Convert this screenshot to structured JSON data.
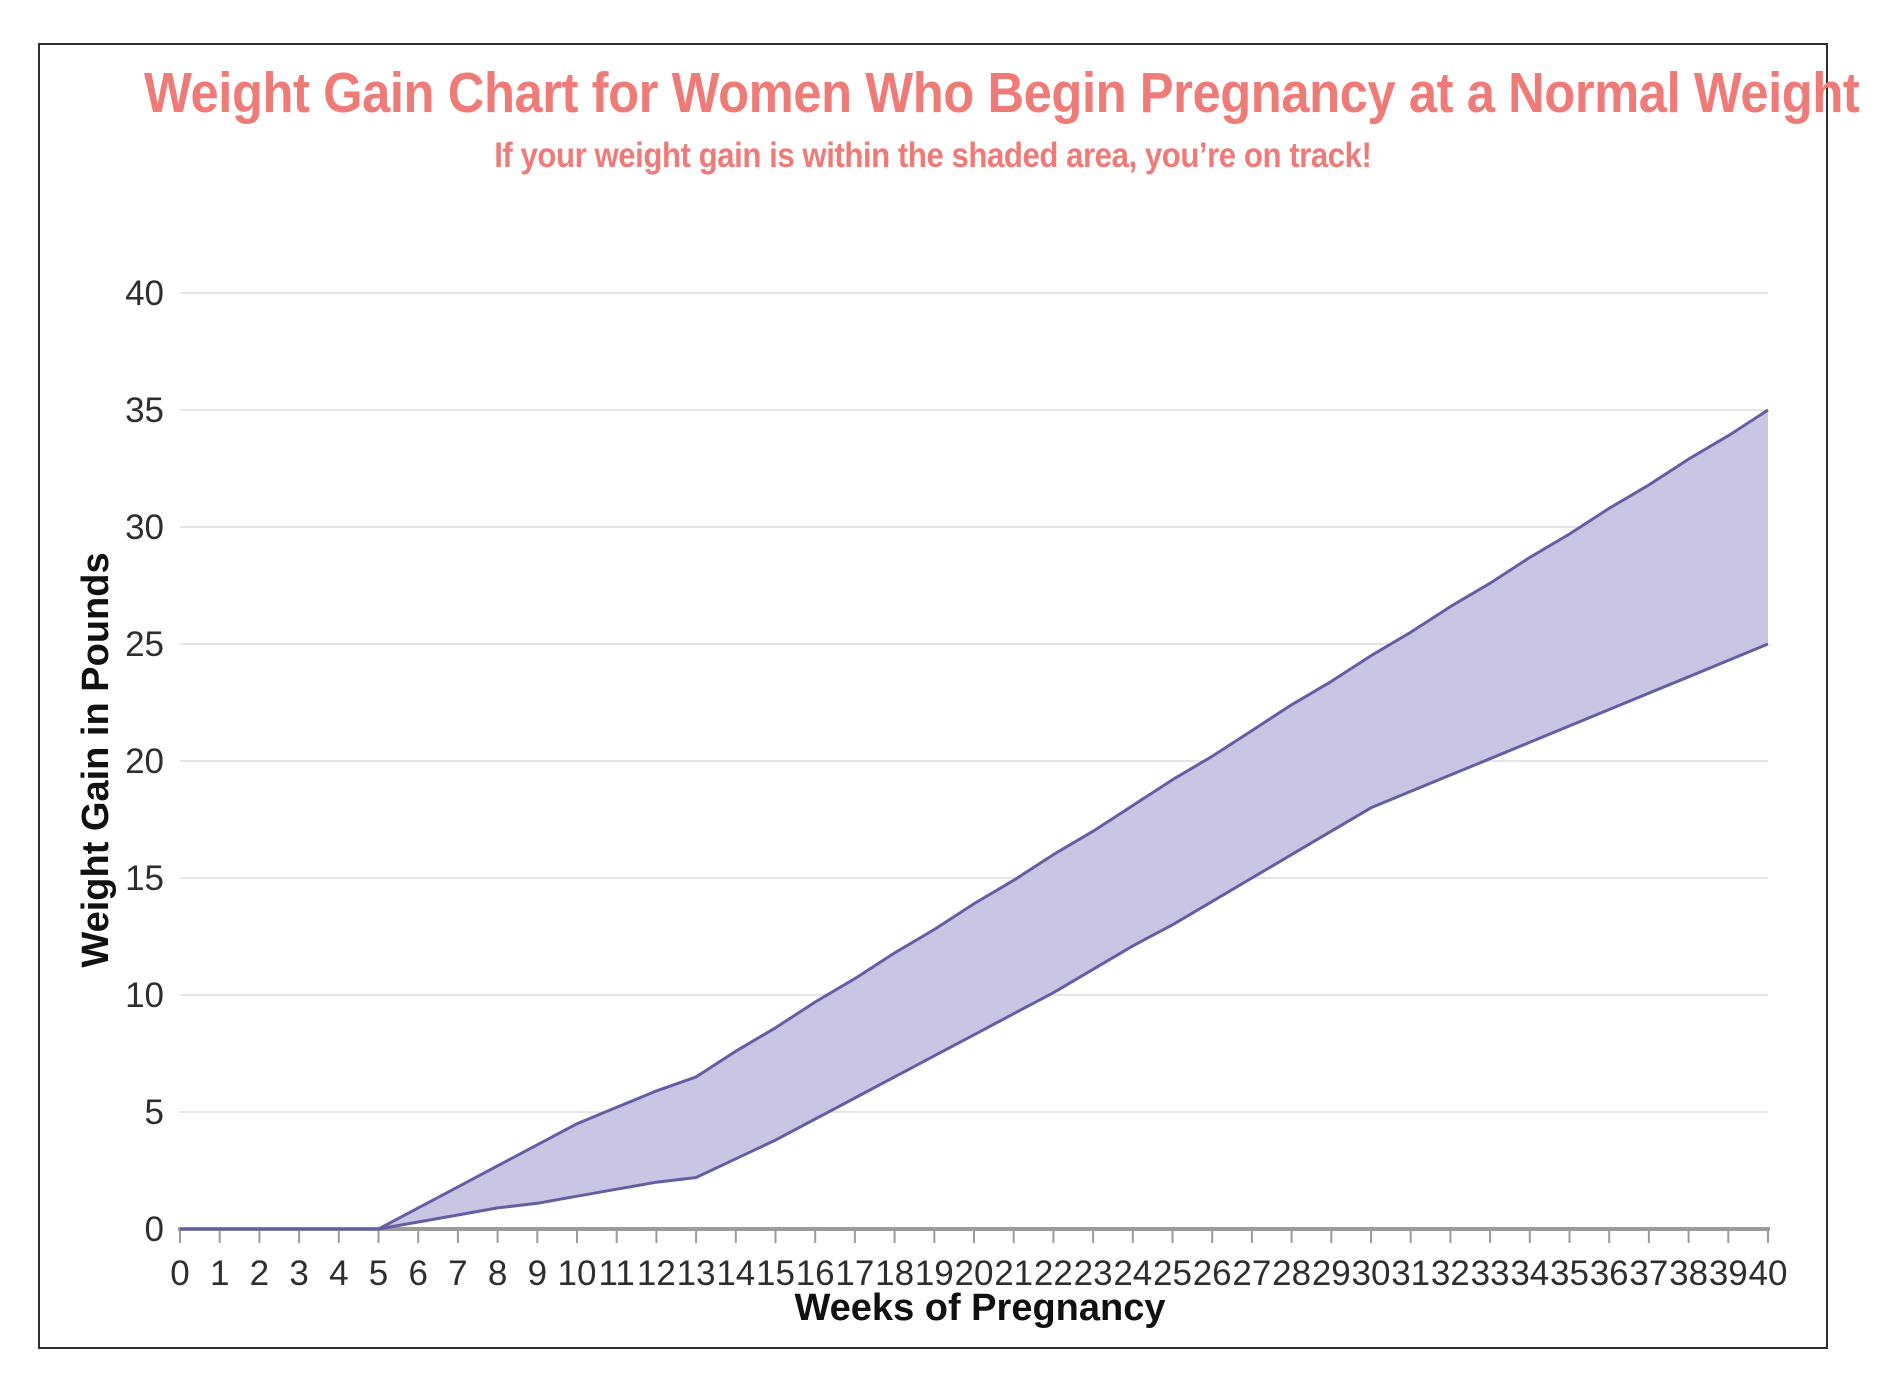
{
  "colors": {
    "heading": "#EF7B79",
    "band_fill": "#C9C5E3",
    "band_stroke": "#645FA4",
    "gridline": "#E5E5E7",
    "axis_line": "#9B9B9B",
    "tick_label": "#2E2E2E",
    "axis_title": "#111111",
    "frame_border": "#2E2E2E"
  },
  "chart_data": {
    "type": "area",
    "title": "Weight Gain Chart for Women Who Begin Pregnancy at a Normal Weight",
    "subtitle": "If your weight gain is within the shaded area, you’re on track!",
    "xlabel": "Weeks of Pregnancy",
    "ylabel": "Weight Gain in Pounds",
    "x": [
      0,
      1,
      2,
      3,
      4,
      5,
      6,
      7,
      8,
      9,
      10,
      11,
      12,
      13,
      14,
      15,
      16,
      17,
      18,
      19,
      20,
      21,
      22,
      23,
      24,
      25,
      26,
      27,
      28,
      29,
      30,
      31,
      32,
      33,
      34,
      35,
      36,
      37,
      38,
      39,
      40
    ],
    "series": [
      {
        "name": "upper_bound_lbs",
        "values": [
          0,
          0,
          0,
          0,
          0,
          0,
          0.9,
          1.8,
          2.7,
          3.6,
          4.5,
          5.2,
          5.9,
          6.5,
          7.6,
          8.6,
          9.7,
          10.7,
          11.8,
          12.8,
          13.9,
          14.9,
          16.0,
          17.0,
          18.1,
          19.2,
          20.2,
          21.3,
          22.4,
          23.4,
          24.5,
          25.5,
          26.6,
          27.6,
          28.7,
          29.7,
          30.8,
          31.8,
          32.9,
          33.9,
          35.0
        ]
      },
      {
        "name": "lower_bound_lbs",
        "values": [
          0,
          0,
          0,
          0,
          0,
          0,
          0.3,
          0.6,
          0.9,
          1.1,
          1.4,
          1.7,
          2.0,
          2.2,
          3.0,
          3.8,
          4.7,
          5.6,
          6.5,
          7.4,
          8.3,
          9.2,
          10.1,
          11.1,
          12.1,
          13.0,
          14.0,
          15.0,
          16.0,
          17.0,
          18.0,
          18.7,
          19.4,
          20.1,
          20.8,
          21.5,
          22.2,
          22.9,
          23.6,
          24.3,
          25.0
        ]
      }
    ],
    "xlim": [
      0,
      40
    ],
    "ylim": [
      0,
      40
    ],
    "y_ticks": [
      0,
      5,
      10,
      15,
      20,
      25,
      30,
      35,
      40
    ],
    "grid": "horizontal",
    "legend": "none"
  }
}
